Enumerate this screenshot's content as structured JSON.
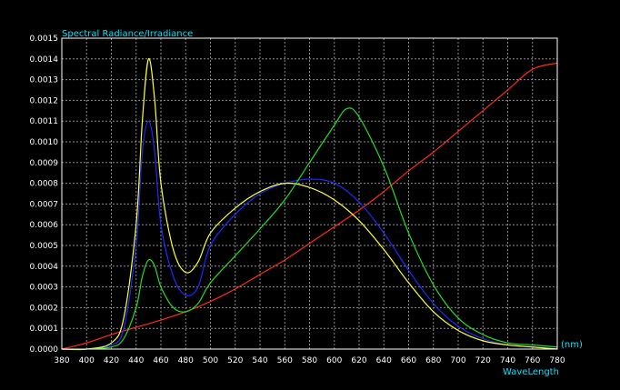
{
  "chart_data": {
    "type": "line",
    "title": "Spectral Radiance/Irradiance",
    "xlabel": "WaveLength",
    "xunit": "(nm)",
    "xlim": [
      380,
      780
    ],
    "ylim": [
      0,
      0.0015
    ],
    "x_ticks": [
      "380",
      "400",
      "420",
      "440",
      "460",
      "480",
      "500",
      "520",
      "540",
      "560",
      "580",
      "600",
      "620",
      "640",
      "660",
      "680",
      "700",
      "720",
      "740",
      "760",
      "780"
    ],
    "y_ticks": [
      "0.0000",
      "0.0001",
      "0.0002",
      "0.0003",
      "0.0004",
      "0.0005",
      "0.0006",
      "0.0007",
      "0.0008",
      "0.0009",
      "0.0010",
      "0.0011",
      "0.0012",
      "0.0013",
      "0.0014",
      "0.0015"
    ],
    "grid": true,
    "colors": {
      "background": "#000000",
      "frame": "#ffffff",
      "grid": "#8a8a8a",
      "label": "#00e5ff"
    },
    "series": [
      {
        "color": "#ff2a1a",
        "x": [
          380,
          400,
          420,
          440,
          460,
          480,
          500,
          520,
          540,
          560,
          580,
          600,
          620,
          640,
          660,
          680,
          700,
          720,
          740,
          760,
          780
        ],
        "y": [
          0.0,
          3e-05,
          7e-05,
          0.000105,
          0.00014,
          0.00018,
          0.00023,
          0.00029,
          0.00036,
          0.00043,
          0.00051,
          0.00059,
          0.00067,
          0.00076,
          0.00086,
          0.00095,
          0.00105,
          0.00115,
          0.00125,
          0.00135,
          0.00138
        ]
      },
      {
        "color": "#1a2cff",
        "x": [
          380,
          400,
          420,
          430,
          440,
          445,
          450,
          455,
          460,
          470,
          480,
          490,
          500,
          520,
          540,
          560,
          580,
          600,
          620,
          640,
          660,
          680,
          700,
          720,
          740,
          760,
          780
        ],
        "y": [
          0.0,
          0.0,
          2e-05,
          0.0001,
          0.0005,
          0.00095,
          0.0011,
          0.00095,
          0.0006,
          0.00035,
          0.00026,
          0.0003,
          0.0005,
          0.00065,
          0.00075,
          0.0008,
          0.00082,
          0.0008,
          0.00071,
          0.00056,
          0.00038,
          0.00022,
          0.00011,
          5e-05,
          2e-05,
          1e-05,
          0.0
        ]
      },
      {
        "color": "#ffff33",
        "x": [
          380,
          400,
          420,
          430,
          440,
          445,
          450,
          455,
          460,
          470,
          480,
          490,
          500,
          520,
          540,
          560,
          580,
          600,
          620,
          640,
          660,
          680,
          700,
          720,
          740,
          760,
          780
        ],
        "y": [
          0.0,
          0.0,
          3e-05,
          0.00015,
          0.0006,
          0.0011,
          0.0014,
          0.0012,
          0.0008,
          0.00048,
          0.00037,
          0.00042,
          0.00056,
          0.00068,
          0.00076,
          0.0008,
          0.00078,
          0.00072,
          0.00062,
          0.00048,
          0.00032,
          0.00018,
          9e-05,
          4e-05,
          2e-05,
          1e-05,
          0.0
        ]
      },
      {
        "color": "#22dd22",
        "x": [
          380,
          400,
          420,
          430,
          440,
          445,
          450,
          455,
          460,
          470,
          480,
          490,
          500,
          520,
          540,
          560,
          580,
          600,
          610,
          620,
          640,
          660,
          680,
          700,
          720,
          740,
          760,
          780
        ],
        "y": [
          0.0,
          0.0,
          1e-05,
          5e-05,
          0.0002,
          0.00035,
          0.00043,
          0.0004,
          0.0003,
          0.0002,
          0.00018,
          0.00022,
          0.00032,
          0.00045,
          0.00058,
          0.00072,
          0.0009,
          0.00108,
          0.00116,
          0.00112,
          0.00088,
          0.00056,
          0.00031,
          0.00015,
          7e-05,
          3e-05,
          2e-05,
          1e-05
        ]
      }
    ]
  }
}
